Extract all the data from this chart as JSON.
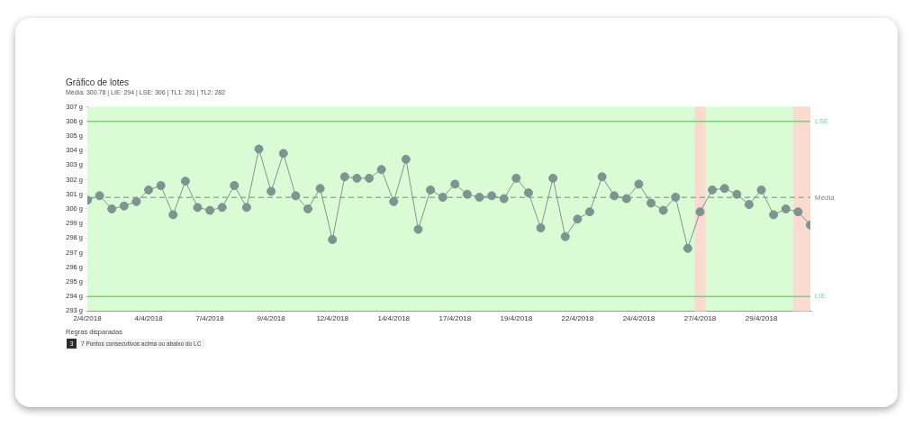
{
  "chart_data": {
    "type": "line",
    "title": "Gráfico de lotes",
    "subtitle": "Média: 300.78 | LIE: 294 | LSE: 306 | TL1: 291 | TL2: 282",
    "categories": [
      "2/4/2018",
      null,
      null,
      null,
      null,
      "4/4/2018",
      null,
      null,
      null,
      null,
      "7/4/2018",
      null,
      null,
      null,
      null,
      "9/4/2018",
      null,
      null,
      null,
      null,
      "12/4/2018",
      null,
      null,
      null,
      null,
      "14/4/2018",
      null,
      null,
      null,
      null,
      "17/4/2018",
      null,
      null,
      null,
      null,
      "19/4/2018",
      null,
      null,
      null,
      null,
      "22/4/2018",
      null,
      null,
      null,
      null,
      "24/4/2018",
      null,
      null,
      null,
      null,
      "27/4/2018",
      null,
      null,
      null,
      null,
      "29/4/2018",
      null,
      null,
      null,
      null
    ],
    "series": [
      {
        "color": "#7d9490",
        "values": [
          300.6,
          300.9,
          300.0,
          300.2,
          300.5,
          301.3,
          301.6,
          299.6,
          301.9,
          300.1,
          299.9,
          300.1,
          301.6,
          300.1,
          304.1,
          301.2,
          303.8,
          300.9,
          300.0,
          301.4,
          297.9,
          302.2,
          302.1,
          302.1,
          302.7,
          300.5,
          303.4,
          298.6,
          301.3,
          300.8,
          301.7,
          301.0,
          300.8,
          300.9,
          300.7,
          302.1,
          301.1,
          298.7,
          302.1,
          298.1,
          299.3,
          299.8,
          302.2,
          300.9,
          300.7,
          301.7,
          300.4,
          299.9,
          300.8,
          297.3,
          299.8,
          301.3,
          301.4,
          301.0,
          300.3,
          301.3,
          299.6,
          300.0,
          299.8,
          298.9
        ]
      }
    ],
    "ylim": [
      293,
      307
    ],
    "yticks": [
      {
        "value": 293,
        "label": "293 g"
      },
      {
        "value": 294,
        "label": "294 g"
      },
      {
        "value": 295,
        "label": "295 g"
      },
      {
        "value": 296,
        "label": "296 g"
      },
      {
        "value": 297,
        "label": "297 g"
      },
      {
        "value": 298,
        "label": "298 g"
      },
      {
        "value": 299,
        "label": "299 g"
      },
      {
        "value": 300,
        "label": "300 g"
      },
      {
        "value": 301,
        "label": "301 g"
      },
      {
        "value": 302,
        "label": "302 g"
      },
      {
        "value": 303,
        "label": "303 g"
      },
      {
        "value": 304,
        "label": "304 g"
      },
      {
        "value": 305,
        "label": "305 g"
      },
      {
        "value": 306,
        "label": "306 g"
      },
      {
        "value": 307,
        "label": "307 g"
      }
    ],
    "marker": "circle",
    "legend": false,
    "bands": [
      {
        "axis": "y",
        "from": 293,
        "to": 307,
        "color": "#dafcd4"
      },
      {
        "axis": "x",
        "from": "27/4/2018",
        "to": "27/4/2018",
        "color": "#fbdad0"
      }
    ],
    "ref_lines": [
      {
        "axis": "y",
        "value": 306,
        "label": "LSE",
        "color": "#7ccf78",
        "line_style": "solid"
      },
      {
        "axis": "y",
        "value": 300.78,
        "label": "Média",
        "color": "#a0a8a4",
        "line_style": "dashed"
      },
      {
        "axis": "y",
        "value": 294,
        "label": "LIE",
        "color": "#7ccf78",
        "line_style": "solid"
      }
    ],
    "annotations": [
      "Regras disparadas",
      "3",
      "7 Pontos consecutivos acima ou abaixo do LC"
    ]
  }
}
